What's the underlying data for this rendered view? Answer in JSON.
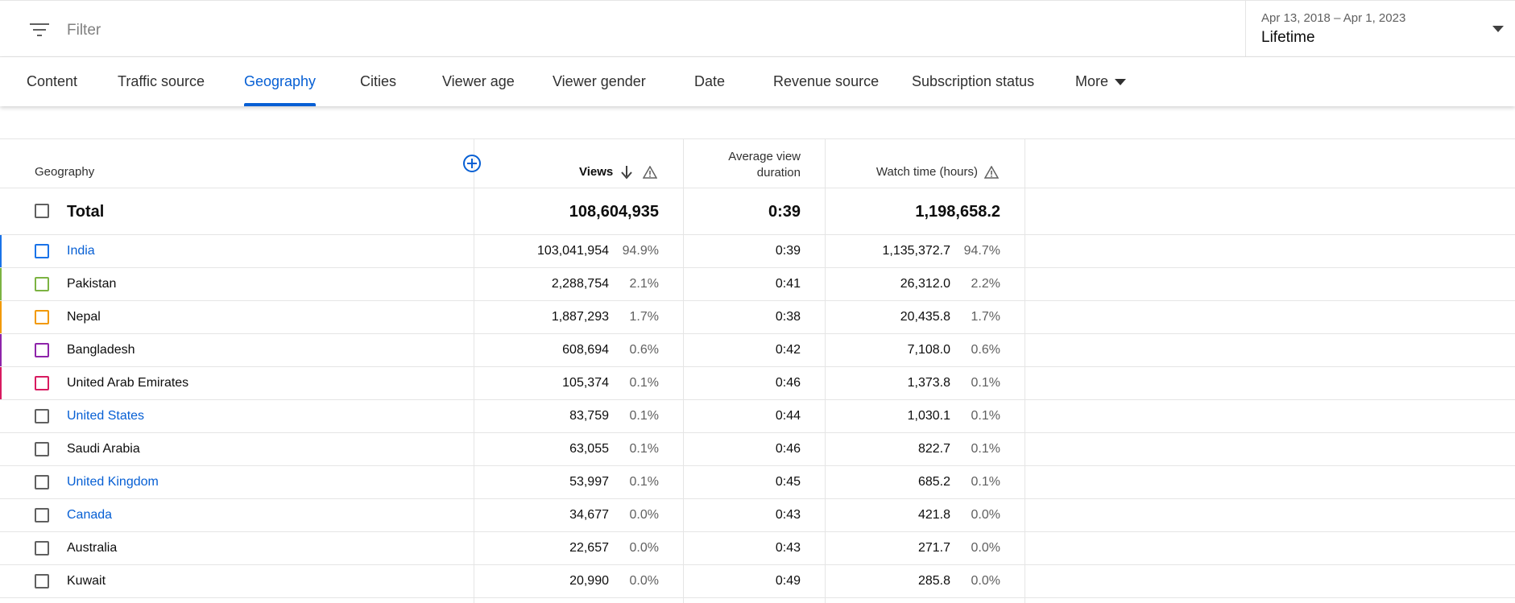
{
  "filter": {
    "placeholder": "Filter",
    "icon": "filter-icon"
  },
  "date_range": {
    "range": "Apr 13, 2018 – Apr 1, 2023",
    "preset": "Lifetime"
  },
  "tabs": [
    {
      "label": "Content"
    },
    {
      "label": "Traffic source"
    },
    {
      "label": "Geography",
      "active": true
    },
    {
      "label": "Cities"
    },
    {
      "label": "Viewer age"
    },
    {
      "label": "Viewer gender"
    },
    {
      "label": "Date"
    },
    {
      "label": "Revenue source"
    },
    {
      "label": "Subscription status"
    },
    {
      "label": "More"
    }
  ],
  "accent_color": "#065fd4",
  "table": {
    "headers": {
      "geography": "Geography",
      "views": "Views",
      "avg_view_duration": "Average view duration",
      "watch_time": "Watch time (hours)"
    },
    "total": {
      "label": "Total",
      "views": "108,604,935",
      "avg_view_duration": "0:39",
      "watch_time": "1,198,658.2"
    },
    "rows": [
      {
        "name": "India",
        "link": true,
        "color": "#1a73e8",
        "views": "103,041,954",
        "views_pct": "94.9%",
        "avd": "0:39",
        "watch_time": "1,135,372.7",
        "watch_pct": "94.7%"
      },
      {
        "name": "Pakistan",
        "link": false,
        "color": "#7cb342",
        "views": "2,288,754",
        "views_pct": "2.1%",
        "avd": "0:41",
        "watch_time": "26,312.0",
        "watch_pct": "2.2%"
      },
      {
        "name": "Nepal",
        "link": false,
        "color": "#f29900",
        "views": "1,887,293",
        "views_pct": "1.7%",
        "avd": "0:38",
        "watch_time": "20,435.8",
        "watch_pct": "1.7%"
      },
      {
        "name": "Bangladesh",
        "link": false,
        "color": "#8e24aa",
        "views": "608,694",
        "views_pct": "0.6%",
        "avd": "0:42",
        "watch_time": "7,108.0",
        "watch_pct": "0.6%"
      },
      {
        "name": "United Arab Emirates",
        "link": false,
        "color": "#d81b60",
        "views": "105,374",
        "views_pct": "0.1%",
        "avd": "0:46",
        "watch_time": "1,373.8",
        "watch_pct": "0.1%"
      },
      {
        "name": "United States",
        "link": true,
        "color": null,
        "views": "83,759",
        "views_pct": "0.1%",
        "avd": "0:44",
        "watch_time": "1,030.1",
        "watch_pct": "0.1%"
      },
      {
        "name": "Saudi Arabia",
        "link": false,
        "color": null,
        "views": "63,055",
        "views_pct": "0.1%",
        "avd": "0:46",
        "watch_time": "822.7",
        "watch_pct": "0.1%"
      },
      {
        "name": "United Kingdom",
        "link": true,
        "color": null,
        "views": "53,997",
        "views_pct": "0.1%",
        "avd": "0:45",
        "watch_time": "685.2",
        "watch_pct": "0.1%"
      },
      {
        "name": "Canada",
        "link": true,
        "color": null,
        "views": "34,677",
        "views_pct": "0.0%",
        "avd": "0:43",
        "watch_time": "421.8",
        "watch_pct": "0.0%"
      },
      {
        "name": "Australia",
        "link": false,
        "color": null,
        "views": "22,657",
        "views_pct": "0.0%",
        "avd": "0:43",
        "watch_time": "271.7",
        "watch_pct": "0.0%"
      },
      {
        "name": "Kuwait",
        "link": false,
        "color": null,
        "views": "20,990",
        "views_pct": "0.0%",
        "avd": "0:49",
        "watch_time": "285.8",
        "watch_pct": "0.0%"
      }
    ]
  }
}
